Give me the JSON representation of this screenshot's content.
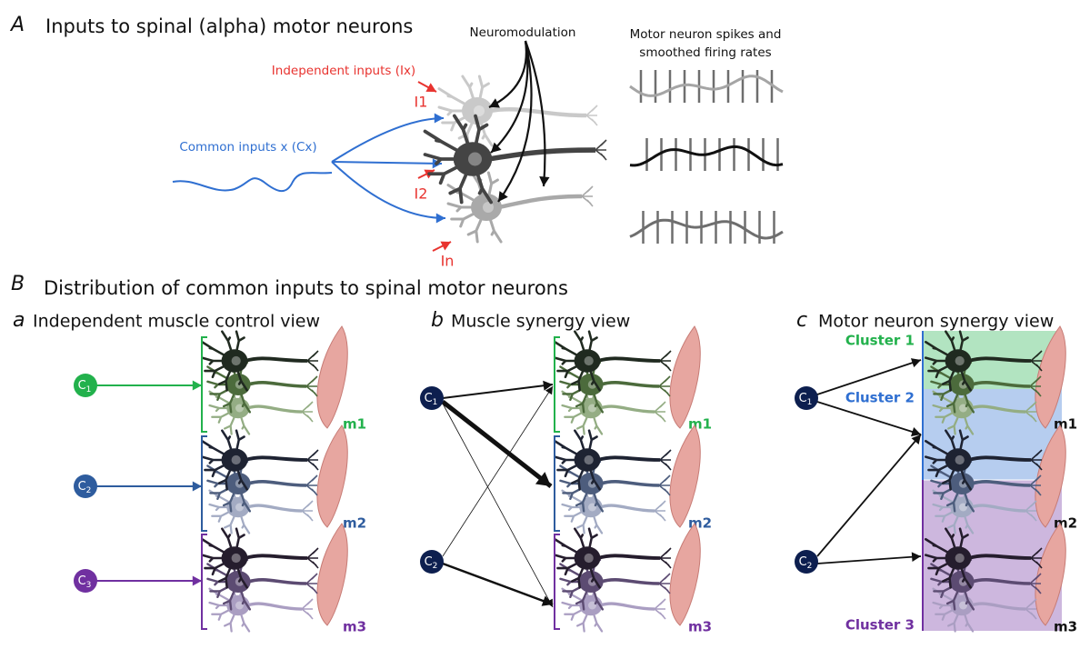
{
  "panel_a": {
    "letter": "A",
    "title": "Inputs to spinal (alpha) motor neurons",
    "neuromodulation": "Neuromodulation",
    "spikes_label": [
      "Motor neuron spikes and",
      "smoothed firing rates"
    ],
    "independent_inputs": "Independent inputs (Ix)",
    "input_labels": [
      "I1",
      "I2",
      "In"
    ],
    "common_inputs": "Common inputs x (Cx)"
  },
  "panel_b": {
    "letter": "B",
    "title": "Distribution of common inputs to spinal motor neurons",
    "views": [
      {
        "letter": "a",
        "title": "Independent muscle control view",
        "inputs": [
          {
            "base": "C",
            "sub": "1"
          },
          {
            "base": "C",
            "sub": "2"
          },
          {
            "base": "C",
            "sub": "3"
          }
        ],
        "muscles": [
          "m1",
          "m2",
          "m3"
        ]
      },
      {
        "letter": "b",
        "title": "Muscle synergy view",
        "inputs": [
          {
            "base": "C",
            "sub": "1"
          },
          {
            "base": "C",
            "sub": "2"
          }
        ],
        "muscles": [
          "m1",
          "m2",
          "m3"
        ]
      },
      {
        "letter": "c",
        "title": "Motor neuron synergy view",
        "inputs": [
          {
            "base": "C",
            "sub": "1"
          },
          {
            "base": "C",
            "sub": "2"
          }
        ],
        "muscles": [
          "m1",
          "m2",
          "m3"
        ]
      }
    ],
    "clusters": [
      "Cluster 1",
      "Cluster 2",
      "Cluster 3"
    ]
  }
}
